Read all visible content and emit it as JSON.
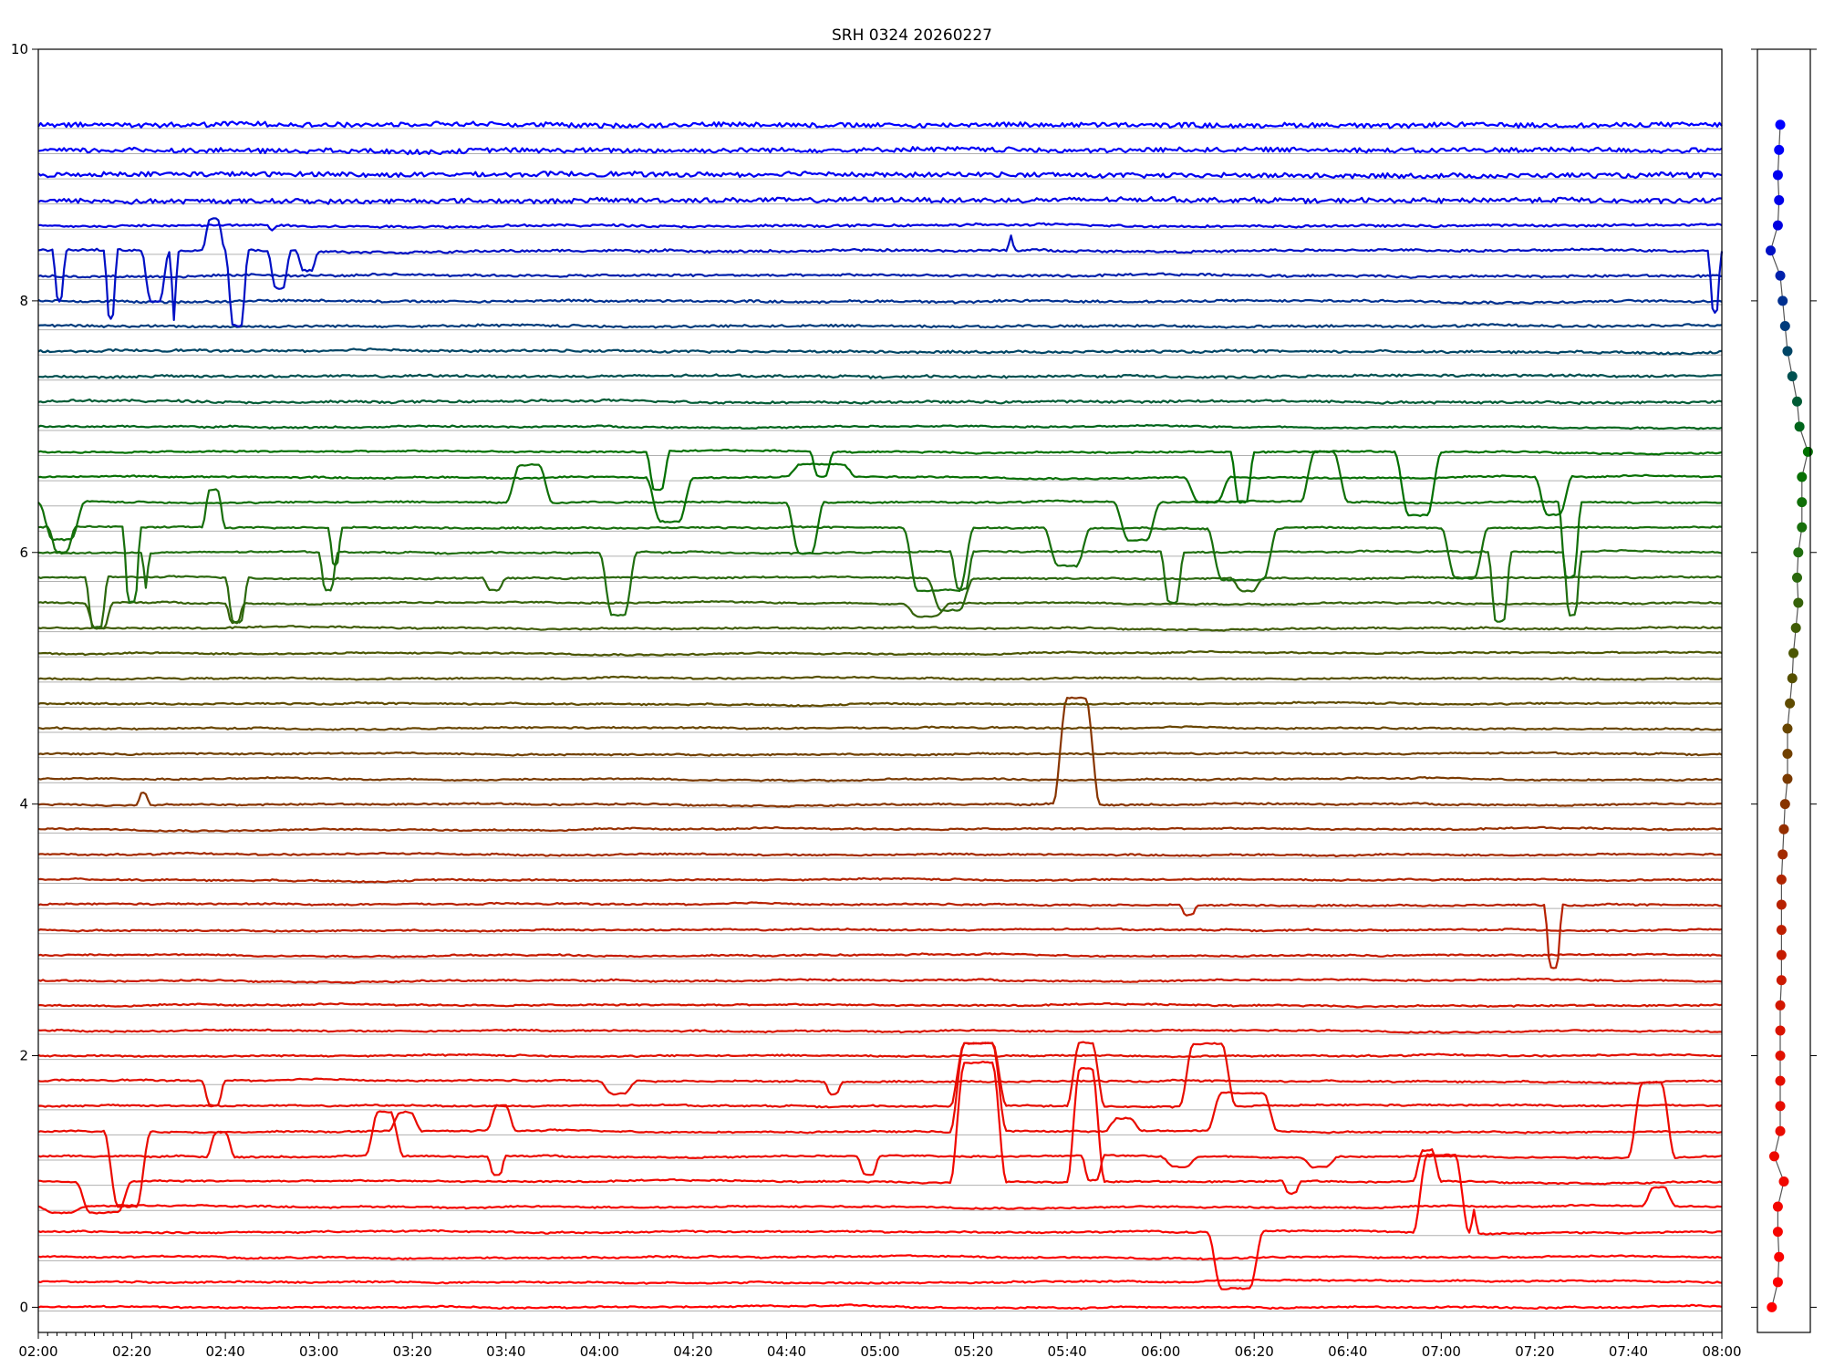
{
  "chart_data": {
    "type": "line",
    "title": "SRH 0324 20260227",
    "xlabel": "",
    "ylabel": "",
    "xlim": [
      "02:00",
      "08:00"
    ],
    "ylim": [
      -0.2,
      10
    ],
    "x_ticks": [
      "02:00",
      "02:20",
      "02:40",
      "03:00",
      "03:20",
      "03:40",
      "04:00",
      "04:20",
      "04:40",
      "05:00",
      "05:20",
      "05:40",
      "06:00",
      "06:20",
      "06:40",
      "07:00",
      "07:20",
      "07:40",
      "08:00"
    ],
    "x_minor_tick_step_minutes": 2,
    "y_ticks": [
      "0",
      "2",
      "4",
      "6",
      "8",
      "10"
    ],
    "grid": "horizontal lines at each trace baseline",
    "legend": "none",
    "color_stops": [
      [
        0.0,
        "#ff0000"
      ],
      [
        2.0,
        "#e01000"
      ],
      [
        3.4,
        "#b02400"
      ],
      [
        4.2,
        "#7a3a00"
      ],
      [
        5.0,
        "#565000"
      ],
      [
        6.0,
        "#206e10"
      ],
      [
        6.8,
        "#007000"
      ],
      [
        7.4,
        "#005050"
      ],
      [
        8.0,
        "#003090"
      ],
      [
        8.6,
        "#0000e0"
      ],
      [
        9.4,
        "#0000ff"
      ]
    ],
    "series": [
      {
        "baseline": 0.0,
        "events": []
      },
      {
        "baseline": 0.2,
        "events": []
      },
      {
        "baseline": 0.4,
        "events": []
      },
      {
        "baseline": 0.6,
        "events": [
          [
            250,
            262,
            -0.45
          ],
          [
            294,
            306,
            0.62
          ],
          [
            306,
            308,
            0.2
          ]
        ]
      },
      {
        "baseline": 0.8,
        "events": [
          [
            0,
            10,
            -0.05
          ],
          [
            343,
            350,
            0.15
          ]
        ]
      },
      {
        "baseline": 1.0,
        "events": [
          [
            8,
            20,
            -0.25
          ],
          [
            195,
            207,
            0.95
          ],
          [
            220,
            228,
            0.9
          ],
          [
            266,
            270,
            -0.1
          ],
          [
            294,
            300,
            0.25
          ]
        ]
      },
      {
        "baseline": 1.2,
        "events": [
          [
            36,
            42,
            0.2
          ],
          [
            70,
            78,
            0.35
          ],
          [
            96,
            100,
            -0.15
          ],
          [
            175,
            180,
            -0.15
          ],
          [
            223,
            228,
            -0.2
          ],
          [
            240,
            248,
            -0.08
          ],
          [
            270,
            278,
            -0.08
          ],
          [
            340,
            350,
            0.6
          ]
        ]
      },
      {
        "baseline": 1.4,
        "events": [
          [
            14,
            24,
            -0.6
          ],
          [
            75,
            82,
            0.15
          ],
          [
            96,
            102,
            0.2
          ],
          [
            195,
            207,
            0.7
          ],
          [
            228,
            236,
            0.1
          ],
          [
            250,
            265,
            0.3
          ]
        ]
      },
      {
        "baseline": 1.6,
        "events": [
          [
            195,
            207,
            0.5
          ],
          [
            220,
            228,
            0.5
          ],
          [
            244,
            256,
            0.5
          ]
        ]
      },
      {
        "baseline": 1.8,
        "events": [
          [
            35,
            40,
            -0.2
          ],
          [
            120,
            128,
            -0.1
          ],
          [
            168,
            172,
            -0.1
          ]
        ]
      },
      {
        "baseline": 2.0,
        "events": []
      },
      {
        "baseline": 2.2,
        "events": []
      },
      {
        "baseline": 2.4,
        "events": []
      },
      {
        "baseline": 2.6,
        "events": []
      },
      {
        "baseline": 2.8,
        "events": []
      },
      {
        "baseline": 3.0,
        "events": []
      },
      {
        "baseline": 3.2,
        "events": [
          [
            244,
            248,
            -0.08
          ],
          [
            322,
            326,
            -0.5
          ]
        ]
      },
      {
        "baseline": 3.4,
        "events": []
      },
      {
        "baseline": 3.6,
        "events": []
      },
      {
        "baseline": 3.8,
        "events": []
      },
      {
        "baseline": 4.0,
        "events": [
          [
            21,
            24,
            0.1
          ],
          [
            217,
            227,
            0.85
          ]
        ]
      },
      {
        "baseline": 4.2,
        "events": []
      },
      {
        "baseline": 4.4,
        "events": []
      },
      {
        "baseline": 4.6,
        "events": []
      },
      {
        "baseline": 4.8,
        "events": []
      },
      {
        "baseline": 5.0,
        "events": []
      },
      {
        "baseline": 5.2,
        "events": []
      },
      {
        "baseline": 5.4,
        "events": []
      },
      {
        "baseline": 5.6,
        "events": [
          [
            10,
            16,
            -0.2
          ],
          [
            40,
            44,
            -0.15
          ],
          [
            185,
            195,
            -0.1
          ]
        ]
      },
      {
        "baseline": 5.8,
        "events": [
          [
            10,
            15,
            -0.4
          ],
          [
            40,
            45,
            -0.35
          ],
          [
            95,
            100,
            -0.1
          ],
          [
            190,
            200,
            -0.25
          ],
          [
            255,
            262,
            -0.1
          ]
        ]
      },
      {
        "baseline": 6.0,
        "events": [
          [
            22,
            24,
            -0.3
          ],
          [
            60,
            64,
            -0.3
          ],
          [
            120,
            128,
            -0.5
          ],
          [
            195,
            200,
            -0.3
          ],
          [
            240,
            245,
            -0.4
          ],
          [
            310,
            315,
            -0.55
          ],
          [
            326,
            330,
            -0.5
          ]
        ]
      },
      {
        "baseline": 6.2,
        "events": [
          [
            2,
            8,
            -0.2
          ],
          [
            18,
            22,
            -0.6
          ],
          [
            35,
            40,
            0.3
          ],
          [
            62,
            65,
            -0.3
          ],
          [
            185,
            200,
            -0.5
          ],
          [
            215,
            225,
            -0.3
          ],
          [
            250,
            265,
            -0.4
          ],
          [
            300,
            310,
            -0.4
          ]
        ]
      },
      {
        "baseline": 6.4,
        "events": [
          [
            0,
            10,
            -0.3
          ],
          [
            100,
            110,
            0.3
          ],
          [
            160,
            168,
            -0.4
          ],
          [
            230,
            240,
            -0.3
          ],
          [
            270,
            280,
            0.4
          ],
          [
            325,
            330,
            -0.6
          ]
        ]
      },
      {
        "baseline": 6.6,
        "events": [
          [
            130,
            140,
            -0.35
          ],
          [
            160,
            175,
            0.1
          ],
          [
            245,
            255,
            -0.2
          ],
          [
            320,
            328,
            -0.3
          ]
        ]
      },
      {
        "baseline": 6.8,
        "events": [
          [
            130,
            135,
            -0.3
          ],
          [
            165,
            170,
            -0.2
          ],
          [
            255,
            260,
            -0.4
          ],
          [
            290,
            300,
            -0.5
          ]
        ]
      },
      {
        "baseline": 7.0,
        "events": []
      },
      {
        "baseline": 7.2,
        "events": []
      },
      {
        "baseline": 7.4,
        "events": []
      },
      {
        "baseline": 7.6,
        "events": []
      },
      {
        "baseline": 7.8,
        "events": []
      },
      {
        "baseline": 8.0,
        "events": []
      },
      {
        "baseline": 8.2,
        "events": []
      },
      {
        "baseline": 8.4,
        "events": [
          [
            3,
            6,
            -0.4
          ],
          [
            14,
            17,
            -0.55
          ],
          [
            22,
            28,
            -0.4
          ],
          [
            28,
            30,
            -0.6
          ],
          [
            35,
            40,
            0.25
          ],
          [
            40,
            45,
            -0.6
          ],
          [
            49,
            54,
            -0.3
          ],
          [
            55,
            60,
            -0.15
          ],
          [
            207,
            209,
            0.12
          ],
          [
            357,
            360,
            -0.5
          ]
        ]
      },
      {
        "baseline": 8.6,
        "events": [
          [
            49,
            51,
            -0.05
          ]
        ]
      },
      {
        "baseline": 8.8,
        "events": []
      },
      {
        "baseline": 9.0,
        "events": []
      },
      {
        "baseline": 9.2,
        "events": []
      },
      {
        "baseline": 9.4,
        "events": []
      }
    ],
    "side_panel": {
      "type": "scatter",
      "xlim": [
        -12,
        32
      ],
      "x": [
        0,
        5,
        6,
        5,
        5,
        10,
        2,
        7,
        7,
        7,
        7,
        7,
        7,
        8,
        8,
        8,
        8,
        8,
        9,
        10,
        11,
        13,
        13,
        13,
        15,
        17,
        18,
        20,
        22,
        21,
        22,
        25,
        25,
        25,
        30,
        23,
        21,
        17,
        13,
        11,
        9,
        7,
        -1,
        5,
        6,
        5,
        6,
        7
      ]
    }
  }
}
